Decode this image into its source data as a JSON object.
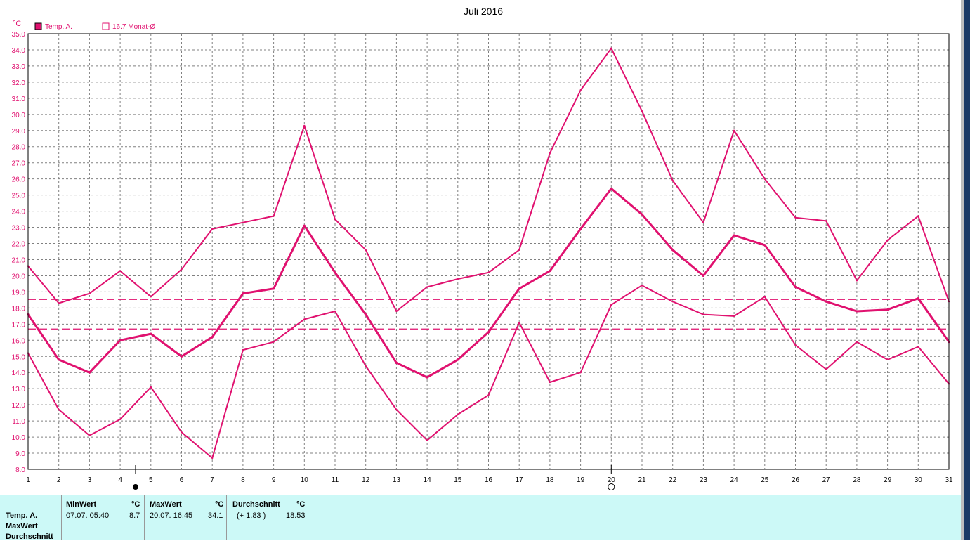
{
  "chart_data": {
    "type": "line",
    "title": "Juli 2016",
    "unit": "°C",
    "legend": [
      {
        "label": "Temp. A.",
        "color": "#e0116f",
        "filled": true
      },
      {
        "label": "16.7 Monat-Ø",
        "color": "#e0116f",
        "filled": false
      }
    ],
    "x": [
      1,
      2,
      3,
      4,
      5,
      6,
      7,
      8,
      9,
      10,
      11,
      12,
      13,
      14,
      15,
      16,
      17,
      18,
      19,
      20,
      21,
      22,
      23,
      24,
      25,
      26,
      27,
      28,
      29,
      30,
      31
    ],
    "ylim": [
      8.0,
      35.0
    ],
    "ytick_step": 1.0,
    "grid": true,
    "series": [
      {
        "values": [
          20.6,
          18.3,
          18.9,
          20.3,
          18.7,
          20.4,
          22.9,
          23.3,
          23.7,
          29.3,
          23.5,
          21.6,
          17.8,
          19.3,
          19.8,
          20.2,
          21.6,
          27.6,
          31.5,
          34.1,
          30.2,
          25.9,
          23.3,
          29.0,
          26.0,
          23.6,
          23.4,
          19.7,
          22.2,
          23.7,
          18.4
        ],
        "width": 2
      },
      {
        "values": [
          17.6,
          14.8,
          14.0,
          16.0,
          16.4,
          15.0,
          16.2,
          18.9,
          19.2,
          23.1,
          20.2,
          17.6,
          14.6,
          13.7,
          14.8,
          16.5,
          19.2,
          20.3,
          22.9,
          25.4,
          23.8,
          21.6,
          20.0,
          22.5,
          21.9,
          19.3,
          18.4,
          17.8,
          17.9,
          18.6,
          15.9
        ],
        "width": 3
      },
      {
        "values": [
          15.2,
          11.7,
          10.1,
          11.1,
          13.1,
          10.3,
          8.7,
          15.4,
          15.9,
          17.3,
          17.8,
          14.4,
          11.7,
          9.8,
          11.4,
          12.6,
          17.1,
          13.4,
          14.0,
          18.2,
          19.4,
          18.4,
          17.6,
          17.5,
          18.7,
          15.7,
          14.2,
          15.9,
          14.8,
          15.6,
          13.3
        ],
        "width": 2
      }
    ],
    "reference_lines": [
      18.53,
      16.7
    ],
    "markers": {
      "filled_dot_after_day": 4,
      "open_circle_day": 20
    }
  },
  "stats": {
    "row_labels": [
      "Temp. A.",
      "MaxWert",
      "Durchschnitt"
    ],
    "min": {
      "header": "MinWert",
      "unit": "°C",
      "datetime": "07.07.  05:40",
      "value": "8.7"
    },
    "max": {
      "header": "MaxWert",
      "unit": "°C",
      "datetime": "20.07.  16:45",
      "value": "34.1"
    },
    "avg": {
      "header": "Durchschnitt",
      "unit": "°C",
      "delta": "(+ 1.83 )",
      "value": "18.53"
    }
  },
  "colors": {
    "line": "#e0116f",
    "axis_text": "#e0116f",
    "panel_bg": "#ccf9f7",
    "grid": "#808080"
  }
}
